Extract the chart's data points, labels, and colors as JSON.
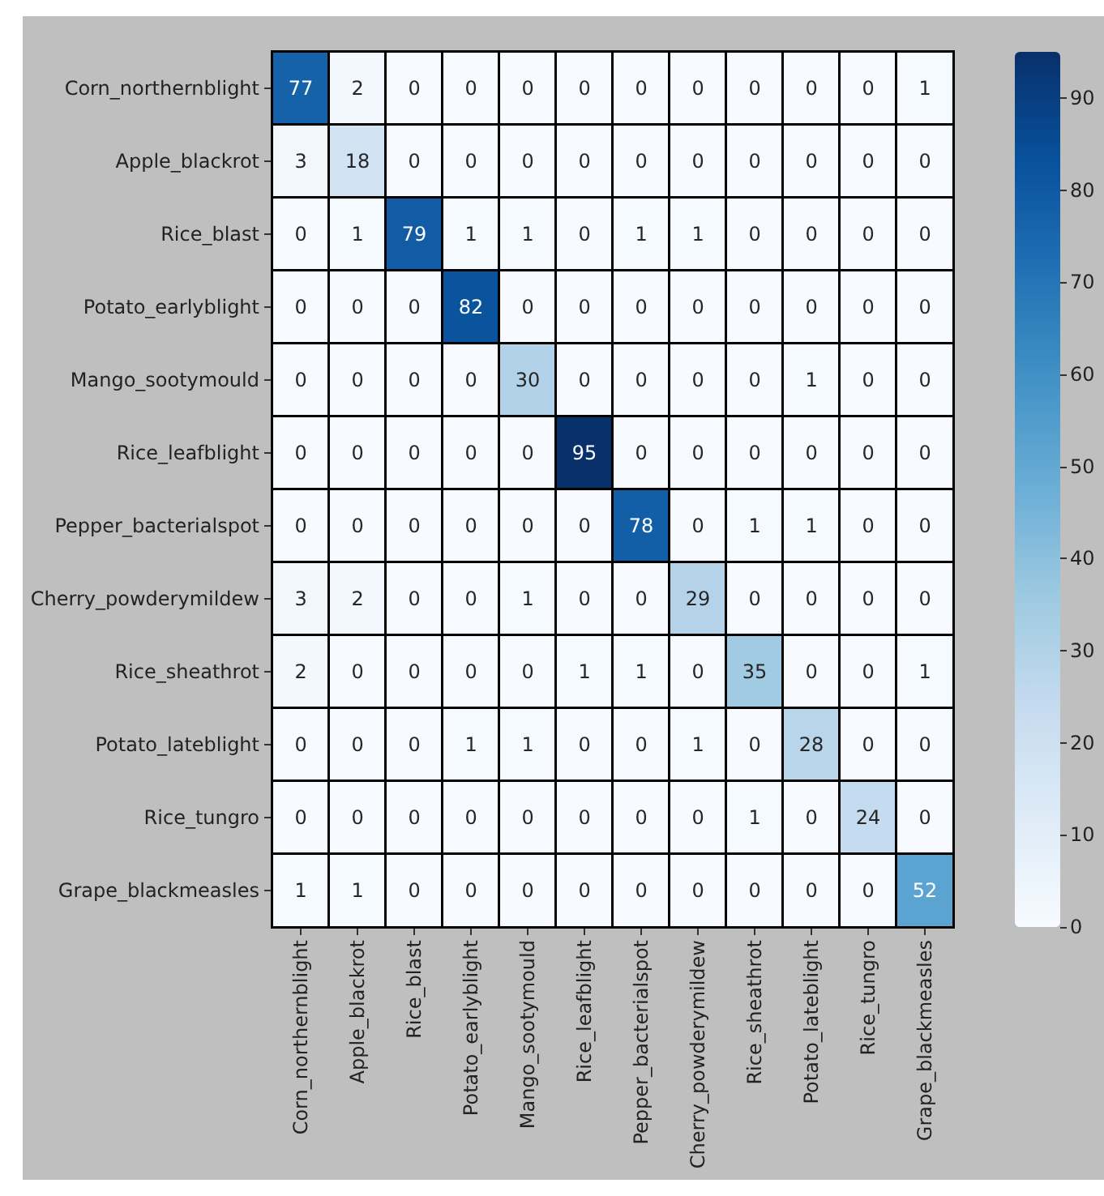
{
  "chart_data": {
    "type": "heatmap",
    "categories": [
      "Corn_northernblight",
      "Apple_blackrot",
      "Rice_blast",
      "Potato_earlyblight",
      "Mango_sootymould",
      "Rice_leafblight",
      "Pepper_bacterialspot",
      "Cherry_powderymildew",
      "Rice_sheathrot",
      "Potato_lateblight",
      "Rice_tungro",
      "Grape_blackmeasles"
    ],
    "y_categories": [
      "Corn_northernblight",
      "Apple_blackrot",
      "Rice_blast",
      "Potato_earlyblight",
      "Mango_sootymould",
      "Rice_leafblight",
      "Pepper_bacterialspot",
      "Cherry_powderymildew",
      "Rice_sheathrot",
      "Potato_lateblight",
      "Rice_tungro",
      "Grape_blackmeasles"
    ],
    "cells": [
      [
        77,
        2,
        0,
        0,
        0,
        0,
        0,
        0,
        0,
        0,
        0,
        1
      ],
      [
        3,
        18,
        0,
        0,
        0,
        0,
        0,
        0,
        0,
        0,
        0,
        0
      ],
      [
        0,
        1,
        79,
        1,
        1,
        0,
        1,
        1,
        0,
        0,
        0,
        0
      ],
      [
        0,
        0,
        0,
        82,
        0,
        0,
        0,
        0,
        0,
        0,
        0,
        0
      ],
      [
        0,
        0,
        0,
        0,
        30,
        0,
        0,
        0,
        0,
        1,
        0,
        0
      ],
      [
        0,
        0,
        0,
        0,
        0,
        95,
        0,
        0,
        0,
        0,
        0,
        0
      ],
      [
        0,
        0,
        0,
        0,
        0,
        0,
        78,
        0,
        1,
        1,
        0,
        0
      ],
      [
        3,
        2,
        0,
        0,
        1,
        0,
        0,
        29,
        0,
        0,
        0,
        0
      ],
      [
        2,
        0,
        0,
        0,
        0,
        1,
        1,
        0,
        35,
        0,
        0,
        1
      ],
      [
        0,
        0,
        0,
        1,
        1,
        0,
        0,
        1,
        0,
        28,
        0,
        0
      ],
      [
        0,
        0,
        0,
        0,
        0,
        0,
        0,
        0,
        1,
        0,
        24,
        0
      ],
      [
        1,
        1,
        0,
        0,
        0,
        0,
        0,
        0,
        0,
        0,
        0,
        52
      ]
    ],
    "data_labels": true,
    "colors": [
      "#f7fbff",
      "#deebf7",
      "#c6dbef",
      "#9ecae1",
      "#6baed6",
      "#4292c6",
      "#2171b5",
      "#08519c",
      "#08306b"
    ],
    "clim": [
      0,
      95
    ],
    "cticks": [
      0,
      10,
      20,
      30,
      40,
      50,
      60,
      70,
      80,
      90
    ]
  }
}
